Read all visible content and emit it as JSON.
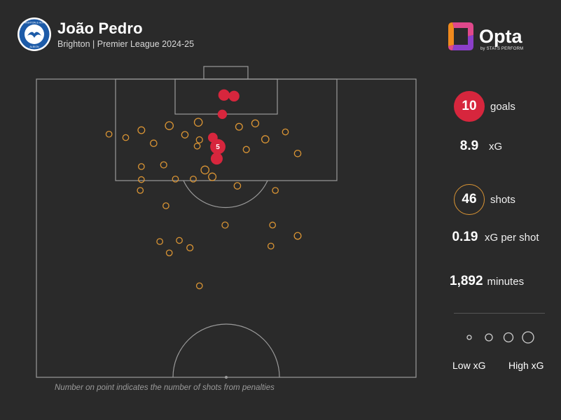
{
  "header": {
    "player": "João Pedro",
    "subtitle": "Brighton | Premier League 2024-25",
    "badge_icon": "brighton-crest"
  },
  "brand": {
    "name": "Opta",
    "tagline": "by STATS PERFORM"
  },
  "stats": [
    {
      "value": "10",
      "label": "goals",
      "style": "filled"
    },
    {
      "value": "8.9",
      "label": "xG",
      "style": "plain"
    },
    {
      "value": "46",
      "label": "shots",
      "style": "ring"
    },
    {
      "value": "0.19",
      "label": "xG per shot",
      "style": "plain"
    },
    {
      "value": "1,892",
      "label": "minutes",
      "style": "plain"
    }
  ],
  "legend": {
    "low": "Low xG",
    "high": "High xG"
  },
  "footnote": "Number on point indicates the number of shots from penalties",
  "colors": {
    "goal": "#d7263d",
    "shot": "#d99434",
    "pitch_line": "#9a9a9a",
    "background": "#2a2a2a"
  },
  "chart_data": {
    "type": "scatter",
    "title": "João Pedro",
    "subtitle": "Brighton | Premier League 2024-25",
    "x_axis": "pitch width (0 = left touchline, 68 = right touchline)",
    "y_axis": "distance from goal line",
    "xlim": [
      0,
      68
    ],
    "ylim": [
      0,
      52.5
    ],
    "goals": [
      {
        "x": 33.6,
        "y": 2.8,
        "xg": 0.35
      },
      {
        "x": 35.4,
        "y": 3.0,
        "xg": 0.3
      },
      {
        "x": 33.3,
        "y": 6.2,
        "xg": 0.2
      },
      {
        "x": 31.6,
        "y": 10.3,
        "xg": 0.22
      },
      {
        "x": 32.5,
        "y": 11.9,
        "xg": 0.76,
        "penalties": "5"
      },
      {
        "x": 32.3,
        "y": 14.0,
        "xg": 0.4
      }
    ],
    "shots": [
      {
        "x": 18.8,
        "y": 9.0,
        "xg": 0.07
      },
      {
        "x": 23.8,
        "y": 8.2,
        "xg": 0.12
      },
      {
        "x": 29.0,
        "y": 7.6,
        "xg": 0.12
      },
      {
        "x": 36.3,
        "y": 8.4,
        "xg": 0.07
      },
      {
        "x": 39.2,
        "y": 7.8,
        "xg": 0.08
      },
      {
        "x": 13.0,
        "y": 9.7,
        "xg": 0.04
      },
      {
        "x": 16.0,
        "y": 10.3,
        "xg": 0.04
      },
      {
        "x": 26.6,
        "y": 9.8,
        "xg": 0.06
      },
      {
        "x": 29.2,
        "y": 10.7,
        "xg": 0.05
      },
      {
        "x": 28.8,
        "y": 11.8,
        "xg": 0.04
      },
      {
        "x": 21.0,
        "y": 11.3,
        "xg": 0.06
      },
      {
        "x": 41.0,
        "y": 10.6,
        "xg": 0.09
      },
      {
        "x": 37.6,
        "y": 12.4,
        "xg": 0.05
      },
      {
        "x": 44.6,
        "y": 9.3,
        "xg": 0.04
      },
      {
        "x": 46.8,
        "y": 13.1,
        "xg": 0.06
      },
      {
        "x": 22.8,
        "y": 15.1,
        "xg": 0.05
      },
      {
        "x": 18.8,
        "y": 15.4,
        "xg": 0.04
      },
      {
        "x": 30.2,
        "y": 16.0,
        "xg": 0.12
      },
      {
        "x": 31.5,
        "y": 17.2,
        "xg": 0.1
      },
      {
        "x": 18.8,
        "y": 17.7,
        "xg": 0.04
      },
      {
        "x": 24.9,
        "y": 17.6,
        "xg": 0.04
      },
      {
        "x": 28.1,
        "y": 17.6,
        "xg": 0.04
      },
      {
        "x": 36.0,
        "y": 18.8,
        "xg": 0.06
      },
      {
        "x": 18.6,
        "y": 19.6,
        "xg": 0.04
      },
      {
        "x": 42.8,
        "y": 19.6,
        "xg": 0.04
      },
      {
        "x": 23.2,
        "y": 22.3,
        "xg": 0.04
      },
      {
        "x": 33.8,
        "y": 25.7,
        "xg": 0.05
      },
      {
        "x": 42.3,
        "y": 25.7,
        "xg": 0.04
      },
      {
        "x": 46.8,
        "y": 27.6,
        "xg": 0.07
      },
      {
        "x": 22.1,
        "y": 28.6,
        "xg": 0.04
      },
      {
        "x": 25.6,
        "y": 28.4,
        "xg": 0.04
      },
      {
        "x": 27.5,
        "y": 29.7,
        "xg": 0.05
      },
      {
        "x": 23.8,
        "y": 30.6,
        "xg": 0.04
      },
      {
        "x": 42.0,
        "y": 29.4,
        "xg": 0.04
      },
      {
        "x": 29.2,
        "y": 36.4,
        "xg": 0.04
      }
    ],
    "legend_sizes_xg": [
      0.02,
      0.06,
      0.12,
      0.2
    ]
  }
}
